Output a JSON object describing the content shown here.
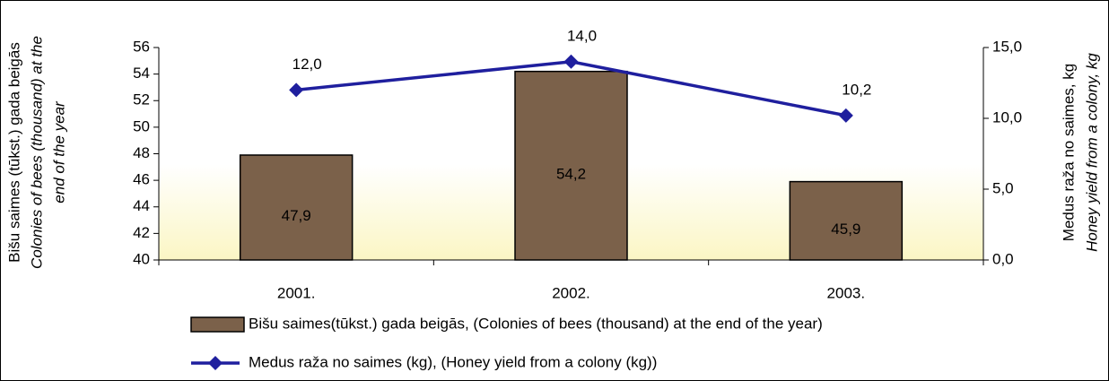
{
  "chart_data": {
    "type": "bar_line",
    "categories": [
      "2001.",
      "2002.",
      "2003."
    ],
    "series": [
      {
        "name": "Bišu saimes(tūkst.) gada beigās, (Colonies of bees (thousand) at the end of the year)",
        "type": "bar",
        "color": "#7b614a",
        "values": [
          47.9,
          54.2,
          45.9
        ],
        "value_labels": [
          "47,9",
          "54,2",
          "45,9"
        ]
      },
      {
        "name": "Medus raža no saimes (kg), (Honey yield from a colony (kg))",
        "type": "line",
        "axis": "y2",
        "color": "#1f1f9e",
        "values": [
          12.0,
          14.0,
          10.2
        ],
        "value_labels": [
          "12,0",
          "14,0",
          "10,2"
        ]
      }
    ],
    "y_label": [
      "Bišu saimes (tūkst.) gada beigās",
      "Colonies of bees (thousand) at the",
      "end of the year"
    ],
    "y2_label": [
      "Medus raža no saimes, kg",
      "Honey yield from a colony, kg"
    ],
    "ylim": [
      40,
      56
    ],
    "yticks": [
      40,
      42,
      44,
      46,
      48,
      50,
      52,
      54,
      56
    ],
    "y2lim": [
      0,
      15
    ],
    "y2ticks": [
      {
        "value": 0,
        "label": "0,0"
      },
      {
        "value": 5,
        "label": "5,0"
      },
      {
        "value": 10,
        "label": "10,0"
      },
      {
        "value": 15,
        "label": "15,0"
      }
    ],
    "legend": "bottom"
  }
}
